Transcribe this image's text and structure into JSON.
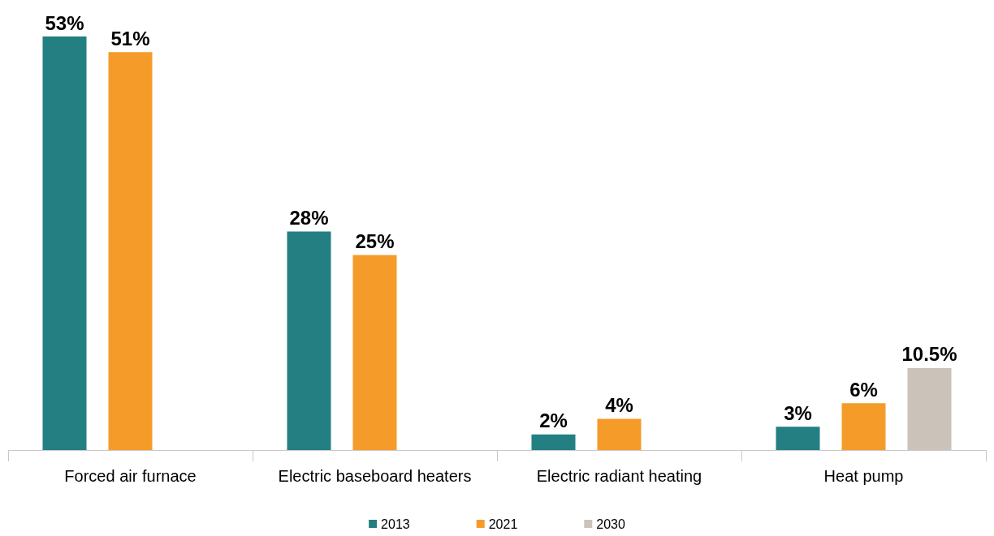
{
  "chart_data": {
    "type": "bar",
    "categories": [
      "Forced air furnace",
      "Electric baseboard heaters",
      "Electric radiant heating",
      "Heat pump"
    ],
    "series": [
      {
        "name": "2013",
        "color": "#237f82",
        "values": [
          53,
          28,
          2,
          3
        ],
        "value_labels": [
          "53%",
          "28%",
          "2%",
          "3%"
        ]
      },
      {
        "name": "2021",
        "color": "#f59b2a",
        "values": [
          51,
          25,
          4,
          6
        ],
        "value_labels": [
          "51%",
          "25%",
          "4%",
          "6%"
        ]
      },
      {
        "name": "2030",
        "color": "#cbc3b9",
        "values": [
          null,
          null,
          null,
          10.5
        ],
        "value_labels": [
          null,
          null,
          null,
          "10.5%"
        ]
      }
    ],
    "legend": "bottom",
    "grid": false
  }
}
